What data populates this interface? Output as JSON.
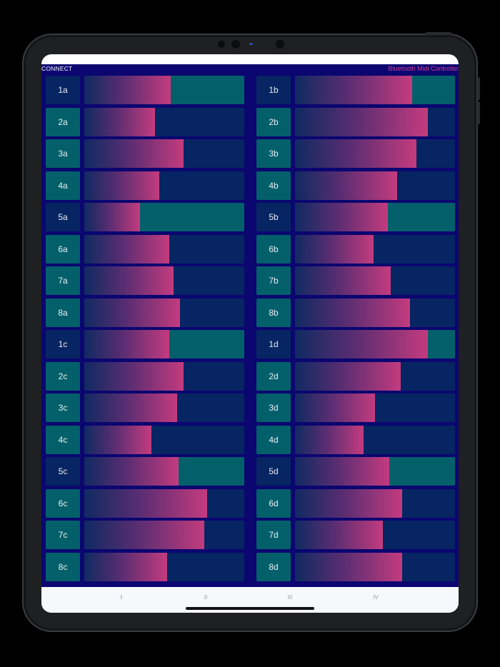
{
  "header": {
    "connect_label": "CONNECT",
    "app_title": "Bluetooth Midi Controller"
  },
  "colors": {
    "background": "#0b0670",
    "teal": "#03606a",
    "navy": "#062562",
    "gradient_start": "#102a62",
    "gradient_end": "#c33b7e",
    "title": "#d03c8f"
  },
  "left_channels": [
    {
      "label": "1a",
      "level": 0.54,
      "tone": "navy-label-teal-track"
    },
    {
      "label": "2a",
      "level": 0.44,
      "tone": "teal-label-navy-track"
    },
    {
      "label": "3a",
      "level": 0.62,
      "tone": "teal-label-navy-track"
    },
    {
      "label": "4a",
      "level": 0.47,
      "tone": "teal-label-navy-track"
    },
    {
      "label": "5a",
      "level": 0.35,
      "tone": "navy-label-teal-track"
    },
    {
      "label": "6a",
      "level": 0.53,
      "tone": "teal-label-navy-track"
    },
    {
      "label": "7a",
      "level": 0.56,
      "tone": "teal-label-navy-track"
    },
    {
      "label": "8a",
      "level": 0.6,
      "tone": "teal-label-navy-track"
    },
    {
      "label": "1c",
      "level": 0.53,
      "tone": "navy-label-teal-track"
    },
    {
      "label": "2c",
      "level": 0.62,
      "tone": "teal-label-navy-track"
    },
    {
      "label": "3c",
      "level": 0.58,
      "tone": "teal-label-navy-track"
    },
    {
      "label": "4c",
      "level": 0.42,
      "tone": "teal-label-navy-track"
    },
    {
      "label": "5c",
      "level": 0.59,
      "tone": "navy-label-teal-track"
    },
    {
      "label": "6c",
      "level": 0.77,
      "tone": "teal-label-navy-track"
    },
    {
      "label": "7c",
      "level": 0.75,
      "tone": "teal-label-navy-track"
    },
    {
      "label": "8c",
      "level": 0.52,
      "tone": "teal-label-navy-track"
    }
  ],
  "right_channels": [
    {
      "label": "1b",
      "level": 0.73,
      "tone": "navy-label-teal-track"
    },
    {
      "label": "2b",
      "level": 0.83,
      "tone": "teal-label-navy-track"
    },
    {
      "label": "3b",
      "level": 0.76,
      "tone": "teal-label-navy-track"
    },
    {
      "label": "4b",
      "level": 0.64,
      "tone": "teal-label-navy-track"
    },
    {
      "label": "5b",
      "level": 0.58,
      "tone": "navy-label-teal-track"
    },
    {
      "label": "6b",
      "level": 0.49,
      "tone": "teal-label-navy-track"
    },
    {
      "label": "7b",
      "level": 0.6,
      "tone": "teal-label-navy-track"
    },
    {
      "label": "8b",
      "level": 0.72,
      "tone": "teal-label-navy-track"
    },
    {
      "label": "1d",
      "level": 0.83,
      "tone": "navy-label-teal-track"
    },
    {
      "label": "2d",
      "level": 0.66,
      "tone": "teal-label-navy-track"
    },
    {
      "label": "3d",
      "level": 0.5,
      "tone": "teal-label-navy-track"
    },
    {
      "label": "4d",
      "level": 0.43,
      "tone": "teal-label-navy-track"
    },
    {
      "label": "5d",
      "level": 0.59,
      "tone": "navy-label-teal-track"
    },
    {
      "label": "6d",
      "level": 0.67,
      "tone": "teal-label-navy-track"
    },
    {
      "label": "7d",
      "level": 0.55,
      "tone": "teal-label-navy-track"
    },
    {
      "label": "8d",
      "level": 0.67,
      "tone": "teal-label-navy-track"
    }
  ],
  "tabs": [
    {
      "label": "I",
      "active": true
    },
    {
      "label": "II",
      "active": false
    },
    {
      "label": "III",
      "active": false
    },
    {
      "label": "IV",
      "active": false
    }
  ]
}
